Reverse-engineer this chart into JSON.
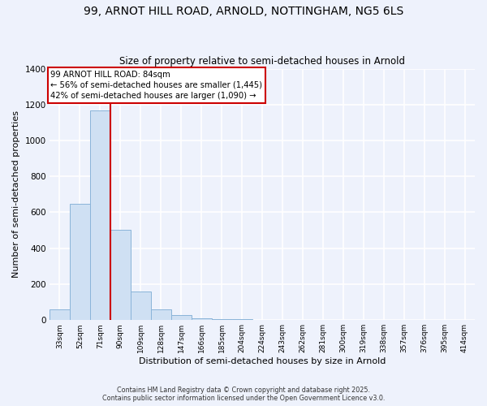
{
  "title_line1": "99, ARNOT HILL ROAD, ARNOLD, NOTTINGHAM, NG5 6LS",
  "title_line2": "Size of property relative to semi-detached houses in Arnold",
  "xlabel": "Distribution of semi-detached houses by size in Arnold",
  "ylabel": "Number of semi-detached properties",
  "bar_labels": [
    "33sqm",
    "52sqm",
    "71sqm",
    "90sqm",
    "109sqm",
    "128sqm",
    "147sqm",
    "166sqm",
    "185sqm",
    "204sqm",
    "224sqm",
    "243sqm",
    "262sqm",
    "281sqm",
    "300sqm",
    "319sqm",
    "338sqm",
    "357sqm",
    "376sqm",
    "395sqm",
    "414sqm"
  ],
  "bar_values": [
    60,
    645,
    1165,
    500,
    160,
    60,
    25,
    10,
    5,
    5,
    0,
    0,
    0,
    0,
    0,
    0,
    0,
    0,
    0,
    0,
    0
  ],
  "bar_color": "#cfe0f3",
  "bar_edge_color": "#8ab4d9",
  "background_color": "#eef2fc",
  "grid_color": "#ffffff",
  "vline_x": 3,
  "vline_color": "#cc0000",
  "annotation_text": "99 ARNOT HILL ROAD: 84sqm\n← 56% of semi-detached houses are smaller (1,445)\n42% of semi-detached houses are larger (1,090) →",
  "annotation_box_color": "#ffffff",
  "annotation_box_edge": "#cc0000",
  "ylim": [
    0,
    1400
  ],
  "yticks": [
    0,
    200,
    400,
    600,
    800,
    1000,
    1200,
    1400
  ],
  "footer_line1": "Contains HM Land Registry data © Crown copyright and database right 2025.",
  "footer_line2": "Contains public sector information licensed under the Open Government Licence v3.0."
}
